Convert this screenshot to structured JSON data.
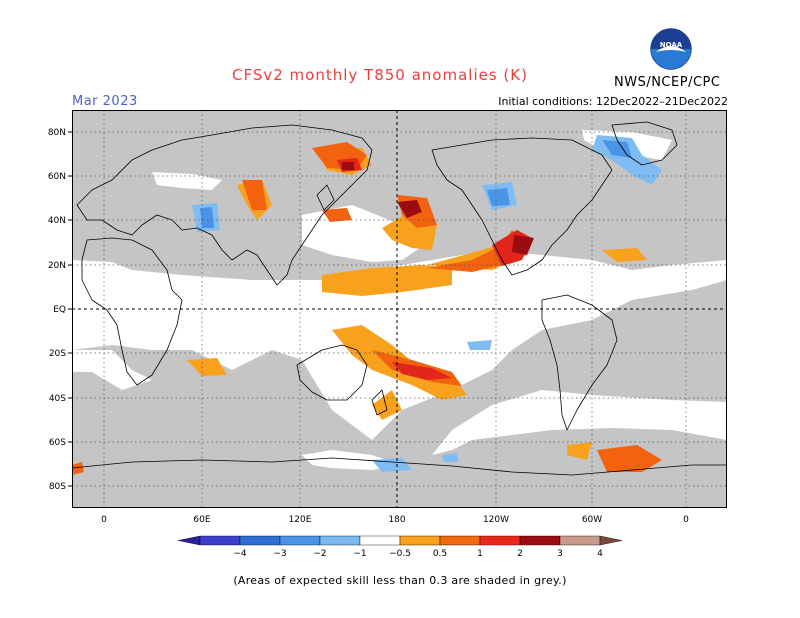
{
  "title": "CFSv2 monthly T850 anomalies (K)",
  "month": "Mar 2023",
  "initial_conditions": "Initial conditions: 12Dec2022–21Dec2022",
  "agency": "NWS/NCEP/CPC",
  "logo_text": "NOAA",
  "note": "(Areas of expected skill less than 0.3 are shaded in grey.)",
  "lat_labels": [
    "80N",
    "60N",
    "40N",
    "20N",
    "EQ",
    "20S",
    "40S",
    "60S",
    "80S"
  ],
  "lon_labels": [
    "0",
    "60E",
    "120E",
    "180",
    "120W",
    "60W",
    "0"
  ],
  "colorbar": {
    "labels": [
      "−4",
      "−3",
      "−2",
      "−1",
      "−0.5",
      "0.5",
      "1",
      "2",
      "3",
      "4"
    ],
    "colors": [
      "#2a1f9c",
      "#3b3fcc",
      "#2e6fd6",
      "#4a93e6",
      "#7bb9f0",
      "#ffffff",
      "#f7a11e",
      "#f06a12",
      "#e8281a",
      "#9b0d13",
      "#c79a8c",
      "#7a4a3c"
    ]
  },
  "colors": {
    "grey_skill": "#c5c5c5",
    "pos_05": "#f8a11d",
    "pos_1": "#f3620f",
    "pos_2": "#e2261c",
    "pos_3": "#9a0c0f",
    "neg_05": "#7fbcf2",
    "neg_1": "#4a93e6",
    "neg_2": "#2e6fd6"
  }
}
